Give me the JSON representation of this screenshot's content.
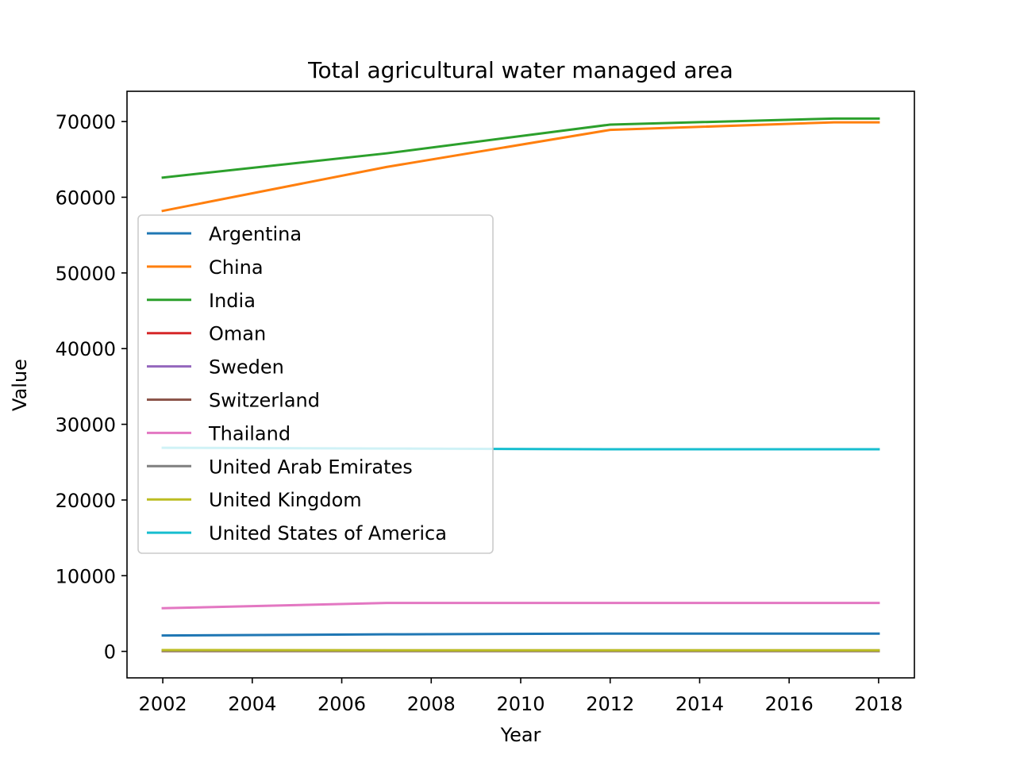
{
  "chart_data": {
    "type": "line",
    "title": "Total agricultural water managed area",
    "xlabel": "Year",
    "ylabel": "Value",
    "xlim": [
      2001.2,
      2018.8
    ],
    "ylim": [
      -3500,
      74000
    ],
    "x_ticks": [
      2002,
      2004,
      2006,
      2008,
      2010,
      2012,
      2014,
      2016,
      2018
    ],
    "y_ticks": [
      0,
      10000,
      20000,
      30000,
      40000,
      50000,
      60000,
      70000
    ],
    "x": [
      2002,
      2007,
      2012,
      2017,
      2018
    ],
    "grid": false,
    "legend_position": "center-left",
    "series": [
      {
        "name": "Argentina",
        "color": "#1f77b4",
        "values": [
          2100,
          2250,
          2350,
          2350,
          2350
        ]
      },
      {
        "name": "China",
        "color": "#ff7f0e",
        "values": [
          58200,
          64000,
          68900,
          69900,
          69900
        ]
      },
      {
        "name": "India",
        "color": "#2ca02c",
        "values": [
          62600,
          65800,
          69600,
          70400,
          70400
        ]
      },
      {
        "name": "Oman",
        "color": "#d62728",
        "values": [
          60,
          60,
          60,
          60,
          60
        ]
      },
      {
        "name": "Sweden",
        "color": "#9467bd",
        "values": [
          130,
          130,
          130,
          130,
          130
        ]
      },
      {
        "name": "Switzerland",
        "color": "#8c564b",
        "values": [
          40,
          40,
          40,
          40,
          40
        ]
      },
      {
        "name": "Thailand",
        "color": "#e377c2",
        "values": [
          5700,
          6400,
          6400,
          6400,
          6400
        ]
      },
      {
        "name": "United Arab Emirates",
        "color": "#7f7f7f",
        "values": [
          100,
          90,
          90,
          90,
          90
        ]
      },
      {
        "name": "United Kingdom",
        "color": "#bcbd22",
        "values": [
          170,
          150,
          150,
          150,
          150
        ]
      },
      {
        "name": "United States of America",
        "color": "#17becf",
        "values": [
          26900,
          26800,
          26700,
          26700,
          26700
        ]
      }
    ]
  }
}
